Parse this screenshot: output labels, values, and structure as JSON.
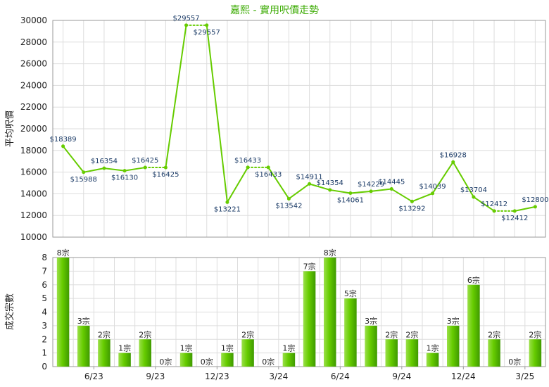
{
  "chart_data": [
    {
      "type": "line",
      "title": "嘉熙 - 實用呎價走勢",
      "ylabel": "平均呎價",
      "ylim": [
        10000,
        30000
      ],
      "yticks": [
        10000,
        12000,
        14000,
        16000,
        18000,
        20000,
        22000,
        24000,
        26000,
        28000,
        30000
      ],
      "grid": true,
      "color": "#66cc00",
      "series": [
        {
          "values": [
            18389,
            15988,
            16354,
            16130,
            16425,
            16425,
            29557,
            29557,
            13221,
            16433,
            16433,
            13542,
            14911,
            14354,
            14061,
            14229,
            14445,
            13292,
            14039,
            16928,
            13704,
            12412,
            12412,
            12800
          ],
          "labels": [
            "$18389",
            "$15988",
            "$16354",
            "$16130",
            "$16425",
            "$16425",
            "$29557",
            "$29557",
            "$13221",
            "$16433",
            "$16433",
            "$13542",
            "$14911",
            "$14354",
            "$14061",
            "$14229",
            "$14445",
            "$13292",
            "$14039",
            "$16928",
            "$13704",
            "$12412",
            "$12412",
            "$12800"
          ],
          "dotted_after": [
            4,
            6,
            9,
            21
          ]
        }
      ]
    },
    {
      "type": "bar",
      "ylabel": "成交宗數",
      "ylim": [
        0,
        8
      ],
      "yticks": [
        0,
        1,
        2,
        3,
        4,
        5,
        6,
        7,
        8
      ],
      "grid": true,
      "color": "#66cc00",
      "values": [
        8,
        3,
        2,
        1,
        2,
        0,
        1,
        0,
        1,
        2,
        0,
        1,
        7,
        8,
        5,
        3,
        2,
        2,
        1,
        3,
        6,
        2,
        0,
        2
      ],
      "value_labels": [
        "8宗",
        "3宗",
        "2宗",
        "1宗",
        "2宗",
        "0宗",
        "1宗",
        "0宗",
        "1宗",
        "2宗",
        "0宗",
        "1宗",
        "7宗",
        "8宗",
        "5宗",
        "3宗",
        "2宗",
        "2宗",
        "1宗",
        "3宗",
        "6宗",
        "2宗",
        "0宗",
        "2宗"
      ],
      "x_tick_labels": [
        {
          "index": 2,
          "label": "6/23"
        },
        {
          "index": 5,
          "label": "9/23"
        },
        {
          "index": 8,
          "label": "12/23"
        },
        {
          "index": 11,
          "label": "3/24"
        },
        {
          "index": 14,
          "label": "6/24"
        },
        {
          "index": 17,
          "label": "9/24"
        },
        {
          "index": 20,
          "label": "12/24"
        },
        {
          "index": 23,
          "label": "3/25"
        }
      ]
    }
  ]
}
